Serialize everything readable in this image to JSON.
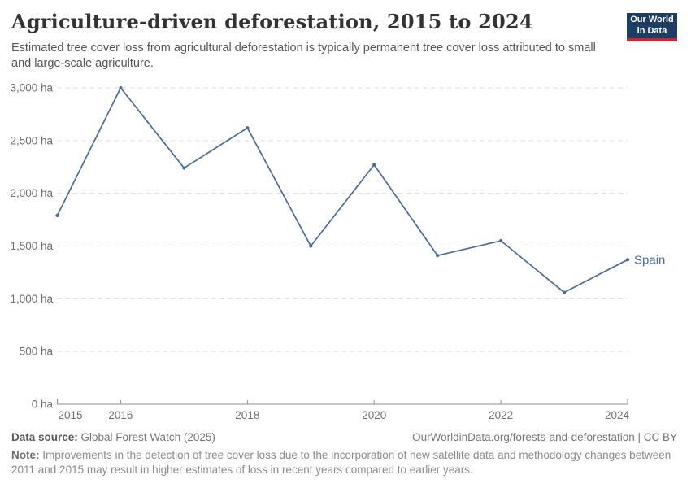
{
  "header": {
    "title": "Agriculture-driven deforestation, 2015 to 2024",
    "subtitle": "Estimated tree cover loss from agricultural deforestation is typically permanent tree cover loss attributed to small and large-scale agriculture.",
    "logo_line1": "Our World",
    "logo_line2": "in Data",
    "logo_bg_color": "#1d3d63",
    "logo_accent_color": "#d1232a"
  },
  "chart_data": {
    "type": "line",
    "title": "Agriculture-driven deforestation, 2015 to 2024",
    "x": [
      2015,
      2016,
      2017,
      2018,
      2019,
      2020,
      2021,
      2022,
      2023,
      2024
    ],
    "series": [
      {
        "name": "Spain",
        "color": "#4c6a9c",
        "values": [
          1790,
          3000,
          2240,
          2620,
          1500,
          2270,
          1410,
          1550,
          1060,
          1370
        ]
      }
    ],
    "unit_suffix": " ha",
    "ylim": [
      0,
      3000
    ],
    "ytick_step": 500,
    "xticks": [
      2015,
      2016,
      2018,
      2020,
      2022,
      2024
    ],
    "grid": "horizontal-dashed",
    "legend_position": "end-of-line",
    "axis_color": "#8f8f8f",
    "grid_color": "#dadada",
    "tick_label_color": "#6e6e6e"
  },
  "footer": {
    "datasource_label": "Data source:",
    "datasource_value": " Global Forest Watch (2025)",
    "license": "OurWorldinData.org/forests-and-deforestation | CC BY",
    "note_label": "Note:",
    "note_value": " Improvements in the detection of tree cover loss due to the incorporation of new satellite data and methodology changes between 2011 and 2015 may result in higher estimates of loss in recent years compared to earlier years."
  }
}
